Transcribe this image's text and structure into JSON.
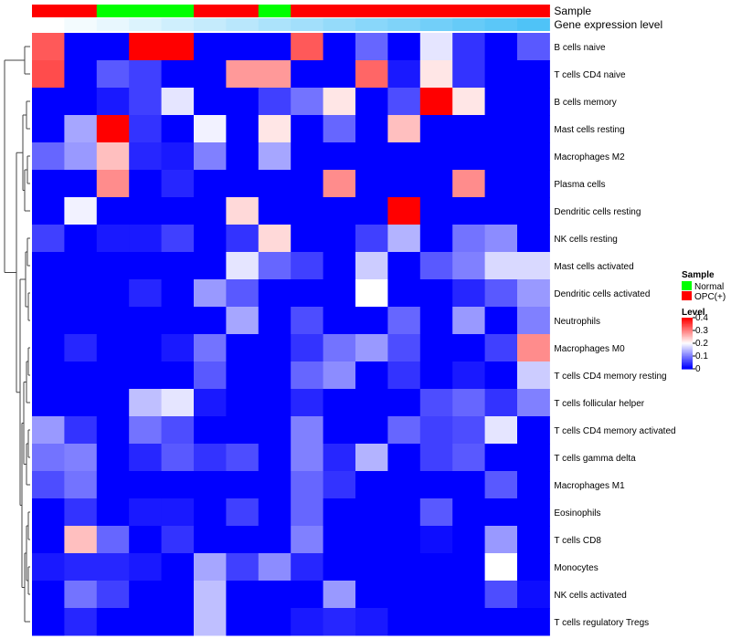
{
  "chart_data": {
    "type": "heatmap",
    "annotation_rows": [
      {
        "name": "Sample",
        "values": [
          "OPC(+)",
          "OPC(+)",
          "Normal",
          "Normal",
          "Normal",
          "OPC(+)",
          "OPC(+)",
          "Normal",
          "OPC(+)",
          "OPC(+)",
          "OPC(+)",
          "OPC(+)",
          "OPC(+)",
          "OPC(+)",
          "OPC(+)",
          "OPC(+)"
        ]
      },
      {
        "name": "Gene expression level",
        "values": [
          0.0,
          0.07,
          0.13,
          0.2,
          0.27,
          0.33,
          0.4,
          0.47,
          0.53,
          0.6,
          0.67,
          0.73,
          0.8,
          0.87,
          0.93,
          1.0
        ]
      }
    ],
    "rows": [
      "B cells naive",
      "T cells CD4 naive",
      "B cells memory",
      "Mast cells resting",
      "Macrophages M2",
      "Plasma cells",
      "Dendritic cells resting",
      "NK cells resting",
      "Mast cells activated",
      "Dendritic cells activated",
      "Neutrophils",
      "Macrophages M0",
      "T cells CD4 memory resting",
      "T cells follicular helper",
      "T cells CD4 memory activated",
      "T cells gamma delta",
      "Macrophages M1",
      "Eosinophils",
      "T cells CD8",
      "Monocytes",
      "NK cells activated",
      "T cells regulatory  Tregs"
    ],
    "values": [
      [
        0.33,
        0,
        0,
        0.4,
        0.4,
        0,
        0,
        0,
        0.33,
        0,
        0.08,
        0,
        0.18,
        0.04,
        0,
        0.07
      ],
      [
        0.34,
        0,
        0.07,
        0.05,
        0,
        0,
        0.28,
        0.28,
        0,
        0,
        0.32,
        0.02,
        0.22,
        0.04,
        0,
        0
      ],
      [
        0,
        0,
        0.02,
        0.05,
        0.18,
        0,
        0,
        0.05,
        0.09,
        0.22,
        0,
        0.06,
        0.4,
        0.22,
        0,
        0
      ],
      [
        0,
        0.13,
        0.4,
        0.04,
        0,
        0.19,
        0,
        0.22,
        0,
        0.08,
        0,
        0.25,
        0,
        0,
        0,
        0
      ],
      [
        0.08,
        0.12,
        0.25,
        0.03,
        0.02,
        0.1,
        0,
        0.13,
        0,
        0,
        0,
        0,
        0,
        0,
        0,
        0
      ],
      [
        0,
        0,
        0.29,
        0,
        0.03,
        0,
        0,
        0,
        0,
        0.29,
        0,
        0,
        0,
        0.29,
        0,
        0
      ],
      [
        0,
        0.19,
        0,
        0,
        0,
        0,
        0.23,
        0,
        0,
        0,
        0,
        0.4,
        0,
        0,
        0,
        0
      ],
      [
        0.05,
        0,
        0.02,
        0.02,
        0.05,
        0,
        0.04,
        0.23,
        0,
        0,
        0.05,
        0.14,
        0,
        0.09,
        0.11,
        0
      ],
      [
        0,
        0,
        0,
        0,
        0,
        0,
        0.18,
        0.08,
        0.05,
        0,
        0.16,
        0,
        0.07,
        0.1,
        0.17,
        0.17
      ],
      [
        0,
        0,
        0,
        0.03,
        0,
        0.12,
        0.07,
        0,
        0,
        0,
        0.2,
        0,
        0,
        0.03,
        0.07,
        0.12
      ],
      [
        0,
        0,
        0,
        0,
        0,
        0,
        0.13,
        0,
        0.06,
        0,
        0,
        0.08,
        0,
        0.12,
        0,
        0.1
      ],
      [
        0,
        0.03,
        0,
        0,
        0.02,
        0.09,
        0,
        0,
        0.04,
        0.09,
        0.12,
        0.06,
        0,
        0,
        0.05,
        0.29
      ],
      [
        0,
        0,
        0,
        0,
        0,
        0.07,
        0,
        0,
        0.08,
        0.11,
        0,
        0.04,
        0,
        0.02,
        0,
        0.16
      ],
      [
        0,
        0,
        0,
        0.15,
        0.18,
        0.02,
        0,
        0,
        0.03,
        0,
        0,
        0,
        0.06,
        0.08,
        0.04,
        0.1
      ],
      [
        0.12,
        0.04,
        0,
        0.09,
        0.06,
        0,
        0,
        0,
        0.1,
        0,
        0,
        0.08,
        0.05,
        0.06,
        0.18,
        0
      ],
      [
        0.09,
        0.1,
        0,
        0.03,
        0.07,
        0.04,
        0.06,
        0,
        0.1,
        0.03,
        0.14,
        0,
        0.05,
        0.07,
        0,
        0
      ],
      [
        0.06,
        0.09,
        0,
        0,
        0,
        0,
        0,
        0,
        0.08,
        0.04,
        0,
        0,
        0,
        0,
        0.07,
        0
      ],
      [
        0,
        0.04,
        0,
        0.02,
        0.02,
        0,
        0.05,
        0,
        0.08,
        0,
        0,
        0,
        0.07,
        0,
        0,
        0
      ],
      [
        0,
        0.25,
        0.08,
        0,
        0.04,
        0,
        0,
        0,
        0.1,
        0,
        0,
        0,
        0.01,
        0,
        0.12,
        0
      ],
      [
        0.02,
        0.03,
        0.03,
        0.02,
        0,
        0.13,
        0.05,
        0.11,
        0.03,
        0,
        0,
        0,
        0,
        0,
        0.2,
        0
      ],
      [
        0,
        0.09,
        0.05,
        0,
        0,
        0.15,
        0,
        0,
        0,
        0.12,
        0,
        0,
        0,
        0,
        0.06,
        0.01
      ],
      [
        0,
        0.03,
        0,
        0,
        0,
        0.15,
        0,
        0,
        0.02,
        0.03,
        0.02,
        0,
        0,
        0,
        0,
        0
      ]
    ],
    "legend": {
      "sample_title": "Sample",
      "sample_entries": [
        {
          "label": "Normal",
          "color": "#00ff00"
        },
        {
          "label": "OPC(+)",
          "color": "#ff0000"
        }
      ],
      "level_title": "Level",
      "level_ticks": [
        "0.4",
        "0.3",
        "0.2",
        "0.1",
        "0"
      ],
      "level_tick_values": [
        0.4,
        0.3,
        0.2,
        0.1,
        0
      ]
    },
    "color_scale": {
      "low": "#0000ff",
      "mid": "#ffffff",
      "high": "#ff0000",
      "min": 0,
      "mid_value": 0.2,
      "max": 0.4
    },
    "annotation_scale": {
      "low": "#ffffff",
      "high": "#4fc3f7"
    }
  }
}
